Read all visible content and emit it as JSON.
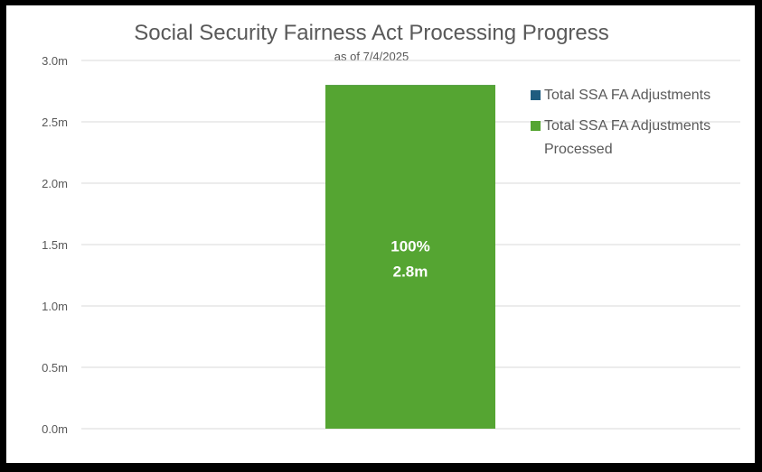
{
  "chart_data": {
    "type": "bar",
    "title": "Social Security Fairness Act Processing Progress",
    "subtitle": "as of 7/4/2025",
    "xlabel": "",
    "ylabel": "",
    "ylim": [
      0,
      3.0
    ],
    "y_ticks": [
      "0.0m",
      "0.5m",
      "1.0m",
      "1.5m",
      "2.0m",
      "2.5m",
      "3.0m"
    ],
    "grid": true,
    "legend_position": "right",
    "series": [
      {
        "name": "Total SSA FA Adjustments",
        "color": "#1F5C7F",
        "values": [
          2.8
        ]
      },
      {
        "name": "Total SSA FA Adjustments Processed",
        "color": "#55A532",
        "values": [
          2.8
        ],
        "data_label": [
          "100%",
          "2.8m"
        ]
      }
    ]
  }
}
